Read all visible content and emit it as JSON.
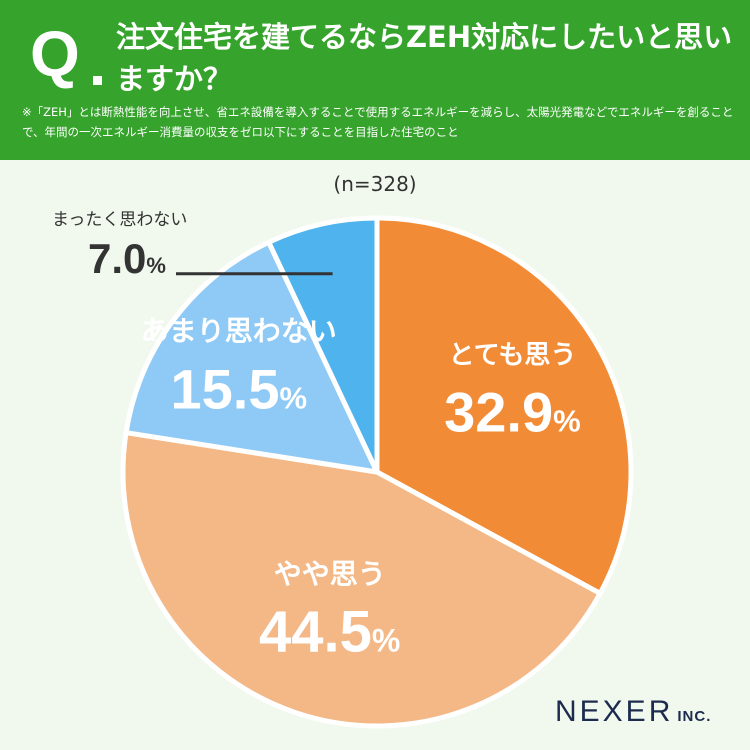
{
  "header": {
    "q_letter": "Q",
    "question": "注文住宅を建てるならZEH対応にしたいと思いますか？",
    "note": "※「ZEH」とは断熱性能を向上させ、省エネ設備を導入することで使用するエネルギーを減らし、太陽光発電などでエネルギーを創ることで、年間の一次エネルギー消費量の収支をゼロ以下にすることを目指した住宅のこと"
  },
  "sample": "(n=328)",
  "logo": {
    "name": "NEXER",
    "suffix": "INC."
  },
  "colors": {
    "header_bg": "#36a32c",
    "background": "#f1f9ee",
    "slice_1": "#f28b36",
    "slice_2": "#f4b887",
    "slice_3": "#8ecaf5",
    "slice_4": "#4fb3ee"
  },
  "chart_data": {
    "type": "pie",
    "categories": [
      "とても思う",
      "やや思う",
      "あまり思わない",
      "まったく思わない"
    ],
    "values": [
      32.9,
      44.5,
      15.5,
      7.0
    ],
    "value_labels": [
      "32.9",
      "44.5",
      "15.5",
      "7.0"
    ],
    "unit": "%",
    "start_angle": "12 o'clock",
    "direction": "clockwise"
  }
}
